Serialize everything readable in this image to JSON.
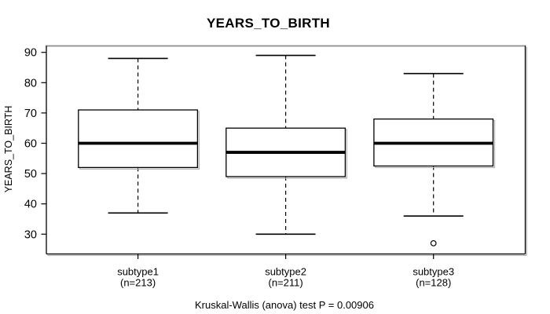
{
  "colors": {
    "background": "#ffffff",
    "stroke": "#000000",
    "frame_top_shadow": "#8c8c8c",
    "outer_shadow": "#b4b4b4",
    "box_fill": "#ffffff"
  },
  "chart_data": {
    "type": "boxplot",
    "title": "YEARS_TO_BIRTH",
    "ylabel": "YEARS_TO_BIRTH",
    "xlabel": "",
    "annotation": "Kruskal-Wallis (anova) test P = 0.00906",
    "grid": false,
    "legend": null,
    "ylim": [
      24,
      92
    ],
    "y_axis": {
      "ticks": [
        30,
        40,
        50,
        60,
        70,
        80,
        90
      ]
    },
    "groups": [
      {
        "label": "subtype1",
        "sublabel": "(n=213)",
        "n": 213,
        "whisker_low": 37,
        "q1": 52,
        "median": 60,
        "q3": 71,
        "whisker_high": 88,
        "outliers": []
      },
      {
        "label": "subtype2",
        "sublabel": "(n=211)",
        "n": 211,
        "whisker_low": 30,
        "q1": 49,
        "median": 57,
        "q3": 65,
        "whisker_high": 89,
        "outliers": []
      },
      {
        "label": "subtype3",
        "sublabel": "(n=128)",
        "n": 128,
        "whisker_low": 36,
        "q1": 52.5,
        "median": 60,
        "q3": 68,
        "whisker_high": 83,
        "outliers": [
          27
        ]
      }
    ]
  }
}
